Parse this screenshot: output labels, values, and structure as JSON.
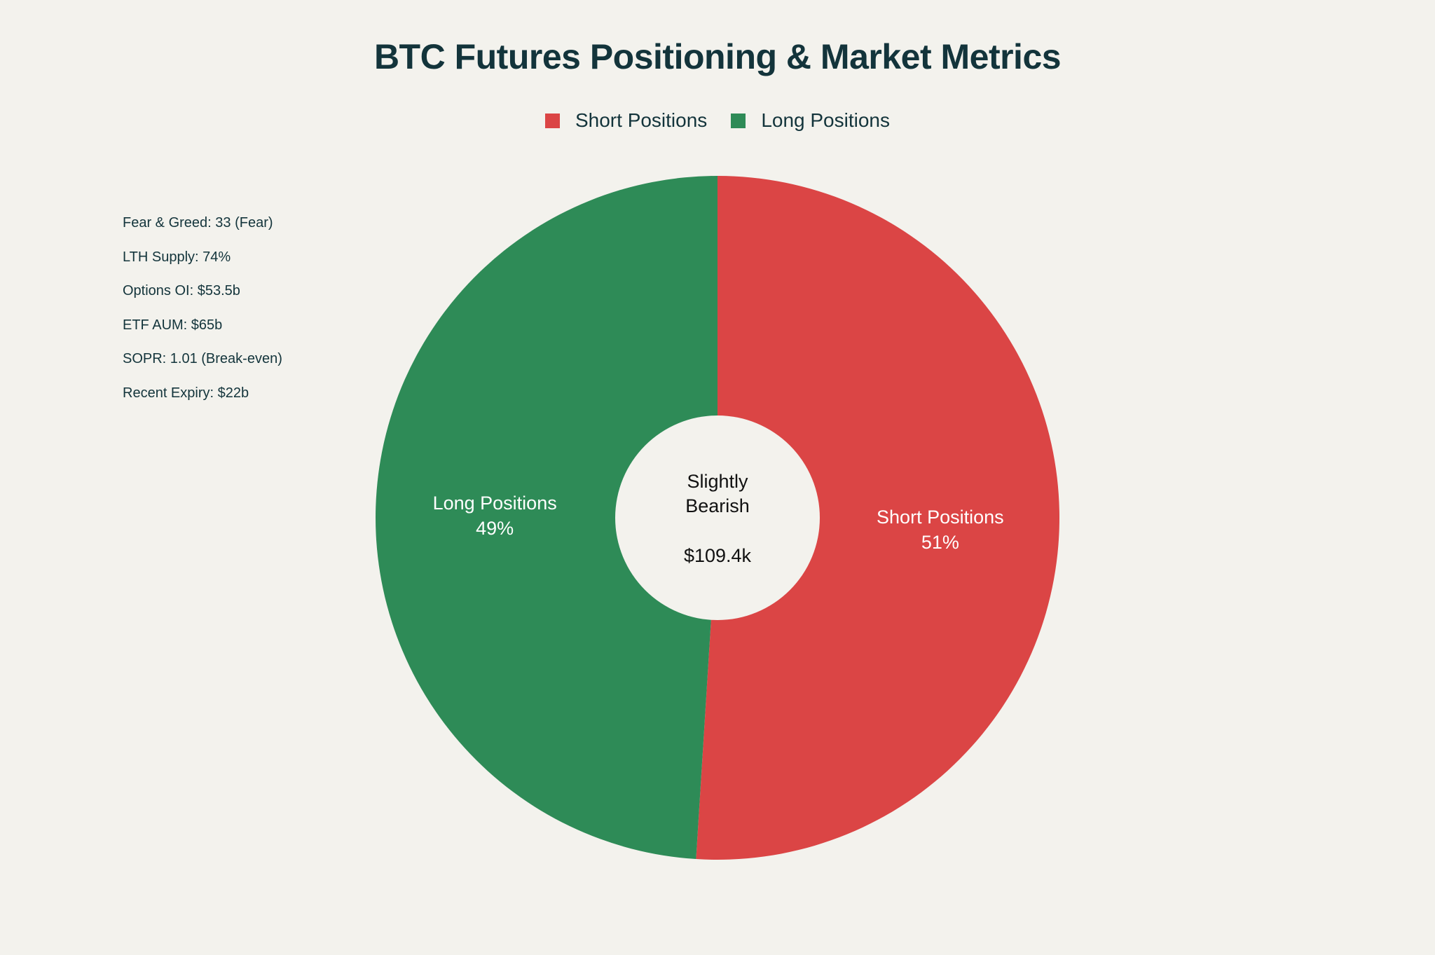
{
  "chart_data": {
    "type": "pie",
    "title": "BTC Futures Positioning & Market Metrics",
    "hole": true,
    "slices": [
      {
        "label": "Short Positions",
        "value": 51,
        "percent_label": "51%",
        "color": "#db4545"
      },
      {
        "label": "Long Positions",
        "value": 49,
        "percent_label": "49%",
        "color": "#2e8b57"
      }
    ],
    "legend": [
      "Short Positions",
      "Long Positions"
    ],
    "legend_placement": "top-center",
    "center_annotation": [
      "Slightly",
      "Bearish",
      "$109.4k"
    ],
    "annotations": [
      "Fear & Greed: 33 (Fear)",
      "LTH Supply: 74%",
      "Options OI: $53.5b",
      "ETF AUM: $65b",
      "SOPR: 1.01 (Break-even)",
      "Recent Expiry: $22b"
    ]
  }
}
